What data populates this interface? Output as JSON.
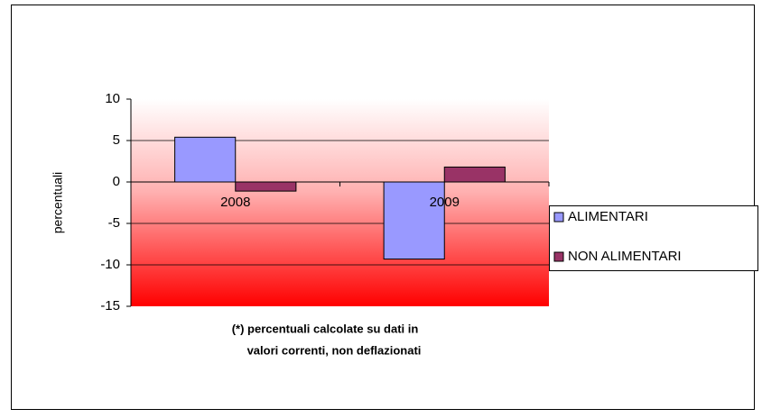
{
  "chart_data": {
    "type": "bar",
    "categories": [
      "2008",
      "2009"
    ],
    "series": [
      {
        "name": "ALIMENTARI",
        "color": "#9999ff",
        "values": [
          5.4,
          -9.3
        ]
      },
      {
        "name": "NON ALIMENTARI",
        "color": "#993366",
        "values": [
          -1.1,
          1.8
        ]
      }
    ],
    "y_label": "percentuali",
    "note": [
      "(*) percentuali  calcolate su dati in",
      "valori correnti, non deflazionati"
    ],
    "ylim": [
      -15,
      10
    ],
    "yticks": [
      -15,
      -10,
      -5,
      0,
      5,
      10
    ],
    "grid": true,
    "legend": "right"
  }
}
